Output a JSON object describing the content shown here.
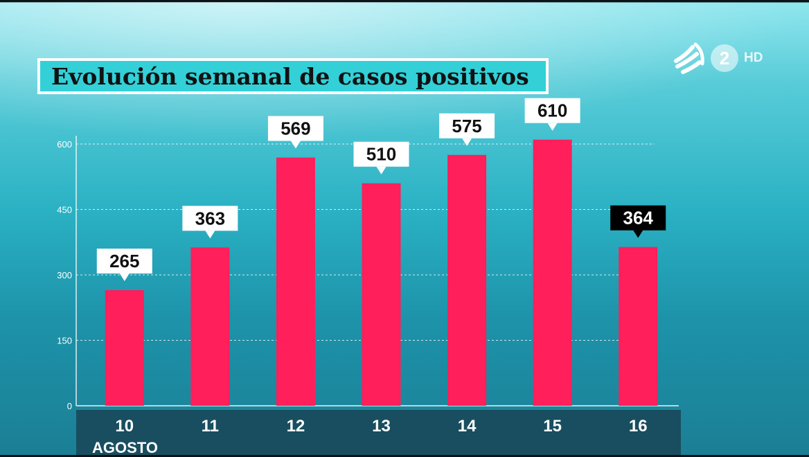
{
  "title": "Evolución semanal de casos positivos",
  "channel": {
    "logo_icon": "eitb-logo-icon",
    "number": "2",
    "quality": "HD"
  },
  "x_sublabel": "AGOSTO",
  "colors": {
    "bar": "#ff1f5a",
    "title_bg": "#33d0d8",
    "label_bg": "#ffffff",
    "label_highlight_bg": "#000000",
    "axis_band": "#184e60"
  },
  "chart_data": {
    "type": "bar",
    "title": "Evolución semanal de casos positivos",
    "categories": [
      "10",
      "11",
      "12",
      "13",
      "14",
      "15",
      "16"
    ],
    "values": [
      265,
      363,
      569,
      510,
      575,
      610,
      364
    ],
    "value_labels": [
      "265",
      "363",
      "569",
      "510",
      "575",
      "610",
      "364"
    ],
    "highlighted_index": 6,
    "yticks": [
      0,
      150,
      300,
      450,
      600
    ],
    "ylim": [
      0,
      650
    ],
    "grid": "dashed horizontal",
    "xlabel": "",
    "ylabel": ""
  }
}
